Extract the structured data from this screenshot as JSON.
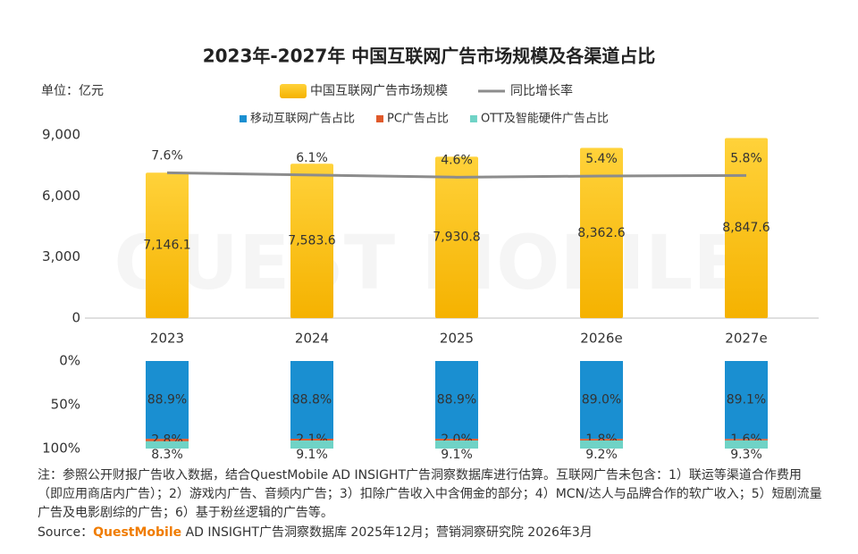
{
  "chart_data": [
    {
      "type": "bar",
      "title": "2023年-2027年 中国互联网广告市场规模及各渠道占比",
      "categories": [
        "2023",
        "2024",
        "2025",
        "2026e",
        "2027e"
      ],
      "ylim": [
        0,
        9000
      ],
      "yticks": [
        0,
        {
          "value": 3000,
          "label": "3,000"
        },
        {
          "value": 6000,
          "label": "6,000"
        },
        {
          "value": 9000,
          "label": "9,000"
        }
      ],
      "y2lim": [
        -90,
        33
      ],
      "series": [
        {
          "name": "中国互联网广告市场规模",
          "color": "#ffbf00",
          "values": [
            7146.1,
            7583.6,
            7930.8,
            8362.6,
            8847.6
          ],
          "value_labels": [
            "7,146.1",
            "7,583.6",
            "7,930.8",
            "8,362.6",
            "8,847.6"
          ]
        },
        {
          "name": "同比增长率",
          "color": "#8c8c8c",
          "type": "line",
          "axis": "y2",
          "values": [
            7.6,
            6.1,
            4.6,
            5.4,
            5.8
          ],
          "value_labels": [
            "7.6%",
            "6.1%",
            "4.6%",
            "5.4%",
            "5.8%"
          ]
        }
      ]
    },
    {
      "type": "stacked_bar",
      "inverted": true,
      "categories": [
        "2023",
        "2024",
        "2025",
        "2026e",
        "2027e"
      ],
      "ylim": [
        0,
        100
      ],
      "yticks": [
        {
          "value": 0,
          "label": "0%"
        },
        {
          "value": 50,
          "label": "50%"
        },
        {
          "value": 100,
          "label": "100%"
        }
      ],
      "series": [
        {
          "name": "移动互联网广告占比",
          "color": "#1a8fd1",
          "values": [
            88.9,
            88.8,
            88.9,
            89.0,
            89.1
          ],
          "value_labels": [
            "88.9%",
            "88.8%",
            "88.9%",
            "89.0%",
            "89.1%"
          ]
        },
        {
          "name": "PC广告占比",
          "color": "#e0592a",
          "values": [
            2.8,
            2.1,
            2.0,
            1.8,
            1.6
          ],
          "value_labels": [
            "2.8%",
            "2.1%",
            "2.0%",
            "1.8%",
            "1.6%"
          ]
        },
        {
          "name": "OTT及智能硬件广告占比",
          "color": "#6fd3c6",
          "values": [
            8.3,
            9.1,
            9.1,
            9.2,
            9.3
          ],
          "value_labels": [
            "8.3%",
            "9.1%",
            "9.1%",
            "9.2%",
            "9.3%"
          ]
        }
      ]
    }
  ],
  "unit": "单位：亿元",
  "watermark": "QUEST MOBILE",
  "note": "注：参照公开财报广告收入数据，结合QuestMobile AD INSIGHT广告洞察数据库进行估算。互联网广告未包含：1）联运等渠道合作费用（即应用商店内广告）；2）游戏内广告、音频内广告；3）扣除广告收入中含佣金的部分；4）MCN/达人与品牌合作的软广收入；5）短剧流量广告及电影剧综的广告；6）基于粉丝逻辑的广告等。",
  "source": {
    "label": "Source：",
    "brand": "QuestMobile",
    "text": " AD INSIGHT广告洞察数据库 2025年12月；营销洞察研究院 2026年3月"
  }
}
